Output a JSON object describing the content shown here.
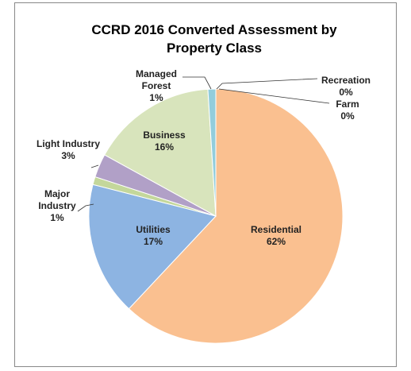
{
  "chart_data": {
    "type": "pie",
    "title": "CCRD 2016 Converted Assessment by Property Class",
    "categories": [
      "Residential",
      "Utilities",
      "Major Industry",
      "Light Industry",
      "Business",
      "Managed Forest",
      "Recreation",
      "Farm"
    ],
    "values": [
      62,
      17,
      1,
      3,
      16,
      1,
      0,
      0
    ],
    "value_labels": [
      "62%",
      "17%",
      "1%",
      "3%",
      "16%",
      "1%",
      "0%",
      "0%"
    ],
    "colors": [
      "#fac090",
      "#8db4e2",
      "#c4d79b",
      "#b1a0c7",
      "#d8e4bc",
      "#92cddc",
      "#e6b9b8",
      "#e26b0a"
    ]
  }
}
